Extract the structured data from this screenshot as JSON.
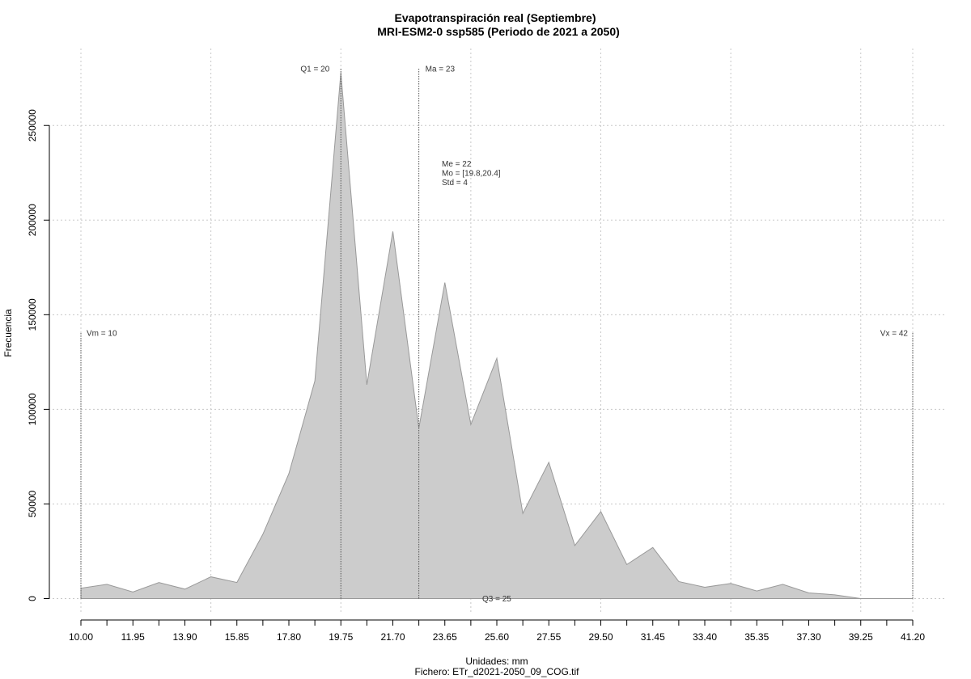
{
  "chart_data": {
    "type": "area",
    "title": "Evapotranspiración real (Septiembre)",
    "subtitle": "MRI-ESM2-0 ssp585 (Periodo de 2021 a 2050)",
    "xlabel": "Unidades: mm",
    "caption": "Fichero: ETr_d2021-2050_09_COG.tif",
    "ylabel": "Frecuencia",
    "xlim": [
      10.0,
      42.0
    ],
    "ylim": [
      0,
      280000
    ],
    "grid": true,
    "x_ticks": [
      "10.00",
      "11.95",
      "13.90",
      "15.85",
      "17.80",
      "19.75",
      "21.70",
      "23.65",
      "25.60",
      "27.55",
      "29.50",
      "31.45",
      "33.40",
      "35.35",
      "37.30",
      "39.25",
      "41.20"
    ],
    "y_ticks": [
      "0",
      "50000",
      "100000",
      "150000",
      "200000",
      "250000"
    ],
    "x": [
      10.0,
      11.0,
      12.0,
      13.0,
      14.0,
      15.0,
      16.0,
      17.0,
      18.0,
      19.0,
      20.0,
      21.0,
      22.0,
      23.0,
      24.0,
      25.0,
      26.0,
      27.0,
      28.0,
      29.0,
      30.0,
      31.0,
      32.0,
      33.0,
      34.0,
      35.0,
      36.0,
      37.0,
      38.0,
      39.0,
      40.0,
      41.0,
      42.0
    ],
    "values": [
      5500,
      7500,
      3500,
      8500,
      5000,
      11500,
      8500,
      34000,
      66000,
      115000,
      278000,
      113000,
      194000,
      90000,
      167000,
      92000,
      127000,
      45000,
      72000,
      28000,
      46000,
      18000,
      27000,
      9000,
      6000,
      8000,
      4000,
      7500,
      3000,
      2000,
      0,
      0,
      0
    ],
    "vlines": [
      {
        "label": "Vm = 10",
        "x": 10.0
      },
      {
        "label": "Q1 = 20",
        "x": 20.0
      },
      {
        "label": "Ma = 23",
        "x": 23.0
      },
      {
        "label": "Vx = 42",
        "x": 42.0
      }
    ],
    "q3_label": "Q3 = 25",
    "stats": [
      "Me = 22",
      "Mo = [19.8,20.4]",
      "Std = 4"
    ],
    "colors": {
      "fill": "#cccccc",
      "stroke": "#999999",
      "grid": "#c8c8c8",
      "vline": "#555555"
    }
  }
}
